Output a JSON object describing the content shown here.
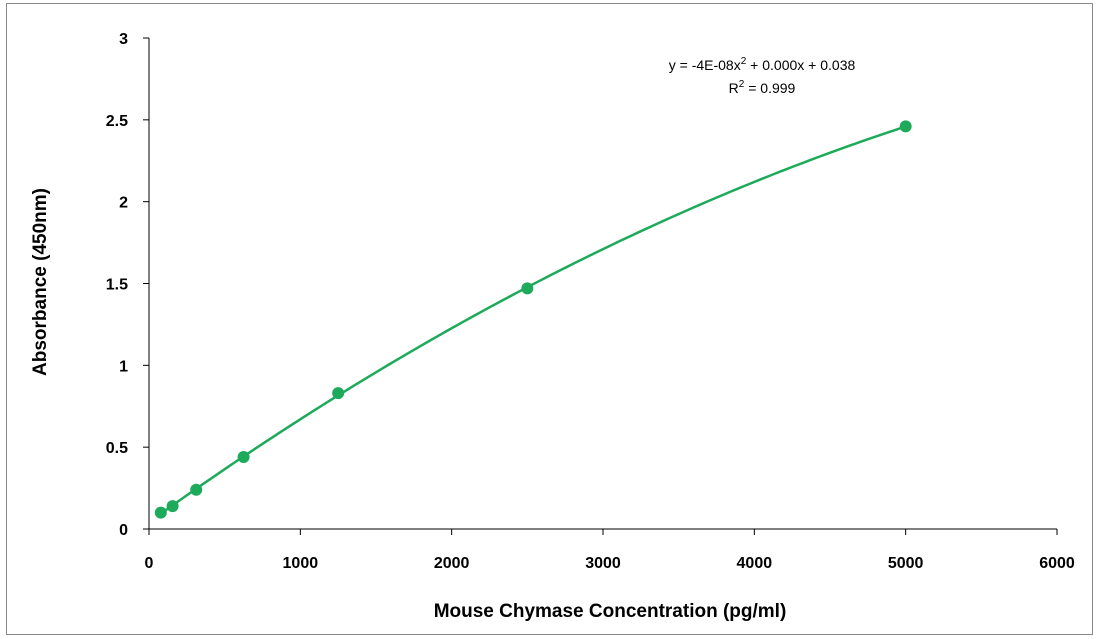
{
  "chart_data": {
    "type": "scatter",
    "title": "",
    "xlabel": "Mouse Chymase Concentration (pg/ml)",
    "ylabel": "Absorbance (450nm)",
    "xlim": [
      0,
      6000
    ],
    "ylim": [
      0,
      3
    ],
    "x_ticks": [
      0,
      1000,
      2000,
      3000,
      4000,
      5000,
      6000
    ],
    "y_ticks": [
      0,
      0.5,
      1,
      1.5,
      2,
      2.5,
      3
    ],
    "x_tick_labels": [
      "0",
      "1000",
      "2000",
      "3000",
      "4000",
      "5000",
      "6000"
    ],
    "y_tick_labels": [
      "0",
      "0.5",
      "1",
      "1.5",
      "2",
      "2.5",
      "3"
    ],
    "grid": false,
    "series": [
      {
        "x": [
          78,
          156,
          312,
          625,
          1250,
          2500,
          5000
        ],
        "y": [
          0.1,
          0.14,
          0.24,
          0.44,
          0.83,
          1.47,
          2.46
        ],
        "color": "#1daa5a",
        "trendline": "polynomial-2"
      }
    ],
    "annotations": {
      "equation_prefix": "y = -4E-08x",
      "equation_suffix": " + 0.000x + 0.038",
      "r2_prefix": "R",
      "r2_suffix": " = 0.999",
      "superscript": "2"
    }
  }
}
